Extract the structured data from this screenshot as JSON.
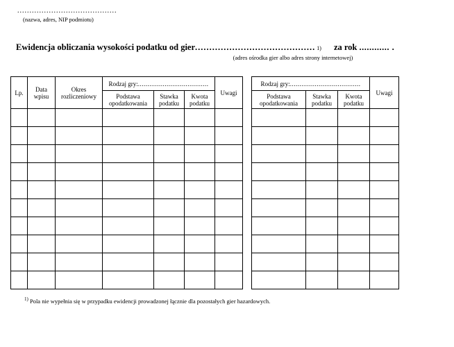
{
  "header": {
    "top_dots": ".........................................",
    "top_caption": "(nazwa, adres, NIP podmiotu)",
    "title_main": "Ewidencja obliczania wysokości podatku od gier ",
    "title_dots": "..........................................",
    "sup_mark": "1)",
    "zarok_label": "za rok ",
    "zarok_dots": "............ .",
    "title_sub": "(adres ośrodka gier albo adres strony internetowej)"
  },
  "table_left": {
    "col_lp": "Lp.",
    "col_data": "Data wpisu",
    "col_okres": "Okres rozliczeniowy",
    "rodzaj_label": "Rodzaj gry:",
    "rodzaj_dots": ".....................................",
    "col_podstawa": "Podstawa opodatkowania",
    "col_stawka": "Stawka podatku",
    "col_kwota": "Kwota podatku",
    "col_uwagi": "Uwagi",
    "widths": {
      "lp": 24,
      "data": 40,
      "okres": 68,
      "podstawa": 74,
      "stawka": 44,
      "kwota": 44,
      "uwagi": 40
    },
    "row_count": 10
  },
  "table_right": {
    "rodzaj_label": "Rodzaj gry:",
    "rodzaj_dots": ".....................................",
    "col_podstawa": "Podstawa opodatkowania",
    "col_stawka": "Stawka podatku",
    "col_kwota": "Kwota podatku",
    "col_uwagi": "Uwagi",
    "widths": {
      "podstawa": 78,
      "stawka": 46,
      "kwota": 46,
      "uwagi": 42
    },
    "row_count": 10
  },
  "footnote": {
    "mark": "1)",
    "text": " Pola nie wypełnia się w przypadku ewidencji prowadzonej łącznie dla pozostałych gier hazardowych."
  }
}
